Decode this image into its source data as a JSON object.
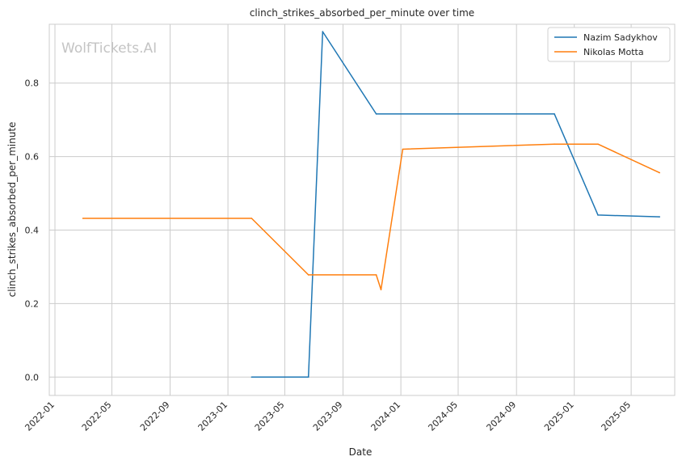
{
  "chart_data": {
    "type": "line",
    "title": "clinch_strikes_absorbed_per_minute over time",
    "xlabel": "Date",
    "ylabel": "clinch_strikes_absorbed_per_minute",
    "watermark": "WolfTickets.AI",
    "x_ticks": [
      "2022-01",
      "2022-05",
      "2022-09",
      "2023-01",
      "2023-05",
      "2023-09",
      "2024-01",
      "2024-05",
      "2024-09",
      "2025-01",
      "2025-05"
    ],
    "y_ticks": [
      "0.0",
      "0.2",
      "0.4",
      "0.6",
      "0.8"
    ],
    "xlim": [
      "2021-12-20",
      "2025-08-01"
    ],
    "ylim": [
      -0.05,
      0.96
    ],
    "grid": true,
    "legend_position": "top-right",
    "series": [
      {
        "name": "Nazim Sadykhov",
        "color": "#1f77b4",
        "points": [
          [
            "2023-02-20",
            0.0
          ],
          [
            "2023-06-20",
            0.0
          ],
          [
            "2023-07-20",
            0.94
          ],
          [
            "2023-11-10",
            0.716
          ],
          [
            "2024-11-20",
            0.716
          ],
          [
            "2025-02-20",
            0.441
          ],
          [
            "2025-06-30",
            0.436
          ]
        ]
      },
      {
        "name": "Nikolas Motta",
        "color": "#ff7f0e",
        "points": [
          [
            "2022-03-01",
            0.432
          ],
          [
            "2023-02-20",
            0.432
          ],
          [
            "2023-06-20",
            0.278
          ],
          [
            "2023-11-10",
            0.278
          ],
          [
            "2023-11-20",
            0.238
          ],
          [
            "2024-01-05",
            0.62
          ],
          [
            "2024-11-20",
            0.634
          ],
          [
            "2025-02-20",
            0.634
          ],
          [
            "2025-06-30",
            0.556
          ]
        ]
      }
    ]
  }
}
